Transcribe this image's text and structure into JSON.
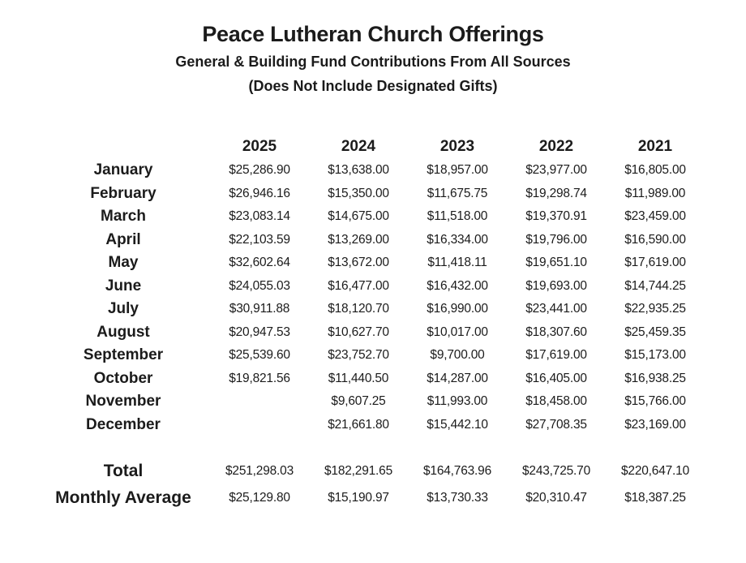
{
  "title": "Peace Lutheran Church Offerings",
  "subtitle1": "General & Building Fund Contributions From All Sources",
  "subtitle2": "(Does Not Include Designated Gifts)",
  "table": {
    "years": [
      "2025",
      "2024",
      "2023",
      "2022",
      "2021"
    ],
    "rows": [
      {
        "label": "January",
        "values": [
          "$25,286.90",
          "$13,638.00",
          "$18,957.00",
          "$23,977.00",
          "$16,805.00"
        ]
      },
      {
        "label": "February",
        "values": [
          "$26,946.16",
          "$15,350.00",
          "$11,675.75",
          "$19,298.74",
          "$11,989.00"
        ]
      },
      {
        "label": "March",
        "values": [
          "$23,083.14",
          "$14,675.00",
          "$11,518.00",
          "$19,370.91",
          "$23,459.00"
        ]
      },
      {
        "label": "April",
        "values": [
          "$22,103.59",
          "$13,269.00",
          "$16,334.00",
          "$19,796.00",
          "$16,590.00"
        ]
      },
      {
        "label": "May",
        "values": [
          "$32,602.64",
          "$13,672.00",
          "$11,418.11",
          "$19,651.10",
          "$17,619.00"
        ]
      },
      {
        "label": "June",
        "values": [
          "$24,055.03",
          "$16,477.00",
          "$16,432.00",
          "$19,693.00",
          "$14,744.25"
        ]
      },
      {
        "label": "July",
        "values": [
          "$30,911.88",
          "$18,120.70",
          "$16,990.00",
          "$23,441.00",
          "$22,935.25"
        ]
      },
      {
        "label": "August",
        "values": [
          "$20,947.53",
          "$10,627.70",
          "$10,017.00",
          "$18,307.60",
          "$25,459.35"
        ]
      },
      {
        "label": "September",
        "values": [
          "$25,539.60",
          "$23,752.70",
          "$9,700.00",
          "$17,619.00",
          "$15,173.00"
        ]
      },
      {
        "label": "October",
        "values": [
          "$19,821.56",
          "$11,440.50",
          "$14,287.00",
          "$16,405.00",
          "$16,938.25"
        ]
      },
      {
        "label": "November",
        "values": [
          "",
          "$9,607.25",
          "$11,993.00",
          "$18,458.00",
          "$15,766.00"
        ]
      },
      {
        "label": "December",
        "values": [
          "",
          "$21,661.80",
          "$15,442.10",
          "$27,708.35",
          "$23,169.00"
        ]
      }
    ],
    "summary": [
      {
        "label": "Total",
        "values": [
          "$251,298.03",
          "$182,291.65",
          "$164,763.96",
          "$243,725.70",
          "$220,647.10"
        ]
      },
      {
        "label": "Monthly Average",
        "values": [
          "$25,129.80",
          "$15,190.97",
          "$13,730.33",
          "$20,310.47",
          "$18,387.25"
        ]
      }
    ]
  }
}
